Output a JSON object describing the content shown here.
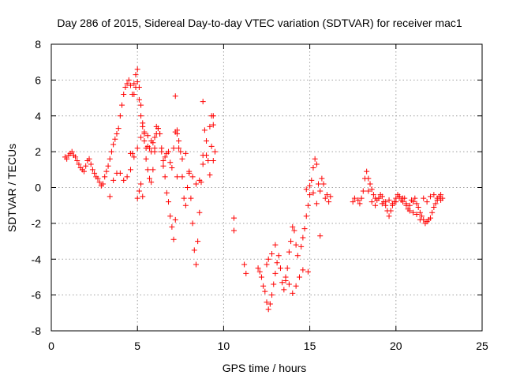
{
  "chart_data": {
    "type": "scatter",
    "title": "Day 286 of 2015, Sidereal Day-to-day VTEC variation (SDTVAR) for receiver mac1",
    "xlabel": "GPS time / hours",
    "ylabel": "SDTVAR / TECUs",
    "xlim": [
      0,
      25
    ],
    "ylim": [
      -8,
      8
    ],
    "xticks": [
      "0",
      "5",
      "10",
      "15",
      "20",
      "25"
    ],
    "yticks": [
      "-8",
      "-6",
      "-4",
      "-2",
      "0",
      "2",
      "4",
      "6",
      "8"
    ],
    "grid": true,
    "marker": "+",
    "color": "#ff0000",
    "series": [
      {
        "name": "SDTVAR",
        "x": [
          0.8,
          0.9,
          1.0,
          1.1,
          1.2,
          1.3,
          1.4,
          1.5,
          1.6,
          1.7,
          1.8,
          1.9,
          2.0,
          2.1,
          2.2,
          2.3,
          2.4,
          2.5,
          2.6,
          2.7,
          2.8,
          2.9,
          3.0,
          3.1,
          3.2,
          3.3,
          3.4,
          3.5,
          3.6,
          3.7,
          3.8,
          3.9,
          4.0,
          4.1,
          4.2,
          4.3,
          4.4,
          4.5,
          4.6,
          4.7,
          4.8,
          4.9,
          5.0,
          5.1,
          5.2,
          5.3,
          5.4,
          5.5,
          5.6,
          5.7,
          5.8,
          5.9,
          6.0,
          6.1,
          6.2,
          6.3,
          6.4,
          6.5,
          6.6,
          6.7,
          6.8,
          6.9,
          7.0,
          7.1,
          7.2,
          7.3,
          7.4,
          7.5,
          7.6,
          7.7,
          7.8,
          7.9,
          8.0,
          8.1,
          8.2,
          8.3,
          8.4,
          8.5,
          8.6,
          8.7,
          8.8,
          8.9,
          9.0,
          9.1,
          9.2,
          9.3,
          9.4,
          9.5,
          10.6,
          10.6,
          11.2,
          11.3,
          12.0,
          12.1,
          12.2,
          12.3,
          12.4,
          12.5,
          12.6,
          12.7,
          12.8,
          12.9,
          13.0,
          13.1,
          13.2,
          13.3,
          13.4,
          13.5,
          13.6,
          13.7,
          13.8,
          13.9,
          14.0,
          14.1,
          14.2,
          14.3,
          14.5,
          14.6,
          14.7,
          14.8,
          14.9,
          15.0,
          15.1,
          15.2,
          15.3,
          15.4,
          15.5,
          15.6,
          15.7,
          15.8,
          15.9,
          16.0,
          16.1,
          16.2,
          17.5,
          17.6,
          17.8,
          17.9,
          18.0,
          18.1,
          18.2,
          18.3,
          18.4,
          18.5,
          18.6,
          18.7,
          18.8,
          18.9,
          19.0,
          19.1,
          19.2,
          19.3,
          19.4,
          19.5,
          19.6,
          19.7,
          19.8,
          19.9,
          20.0,
          20.1,
          20.2,
          20.3,
          20.4,
          20.5,
          20.6,
          20.7,
          20.8,
          20.9,
          21.0,
          21.1,
          21.2,
          21.3,
          21.4,
          21.5,
          21.6,
          21.7,
          21.8,
          21.9,
          22.0,
          22.1,
          22.2,
          22.3,
          22.4,
          22.5,
          22.6,
          22.7,
          3.4,
          3.6,
          3.8,
          4.0,
          4.2,
          4.4,
          4.6,
          4.8,
          5.0,
          5.2,
          5.4,
          5.6,
          5.8,
          6.0,
          4.6,
          4.7,
          4.8,
          4.9,
          5.0,
          5.1,
          5.2,
          5.3,
          5.4,
          5.5,
          5.6,
          5.7,
          5.8,
          5.9,
          6.0,
          6.1,
          6.2,
          6.3,
          6.4,
          6.5,
          6.6,
          6.7,
          6.8,
          6.9,
          7.0,
          7.1,
          7.2,
          7.3,
          7.4,
          7.6,
          7.8,
          8.0,
          8.2,
          8.4,
          8.6,
          8.8,
          9.0,
          9.2,
          9.4,
          5.0,
          5.1,
          5.2,
          5.3,
          7.2,
          7.3,
          8.8,
          9.3,
          9.4,
          13.6,
          13.8,
          14.0,
          14.2,
          14.4,
          14.6,
          14.8,
          15.0,
          15.2,
          15.4,
          15.6,
          12.5,
          12.6,
          12.8,
          13.0,
          14.9,
          18.4,
          18.6,
          18.8,
          19.0,
          19.2,
          19.4,
          19.6,
          19.8,
          20.0,
          20.2,
          20.4,
          20.6,
          20.8,
          21.0,
          21.2,
          21.4,
          21.6,
          21.8,
          22.0,
          22.2,
          22.4,
          22.6
        ],
        "y": [
          1.7,
          1.6,
          1.8,
          1.9,
          2.0,
          1.8,
          1.7,
          1.5,
          1.3,
          1.1,
          1.0,
          0.9,
          1.2,
          1.5,
          1.6,
          1.3,
          1.0,
          0.8,
          0.6,
          0.5,
          0.3,
          0.1,
          0.2,
          0.6,
          0.9,
          1.2,
          1.6,
          2.0,
          2.4,
          2.7,
          3.0,
          3.3,
          4.0,
          4.6,
          5.2,
          5.6,
          5.8,
          6.0,
          5.7,
          5.2,
          5.8,
          6.3,
          6.6,
          5.6,
          4.6,
          3.6,
          2.6,
          1.6,
          1.0,
          0.5,
          0.3,
          1.0,
          2.0,
          3.0,
          3.3,
          3.0,
          2.0,
          1.2,
          0.6,
          -0.3,
          -0.8,
          -1.6,
          -2.2,
          -2.9,
          -1.8,
          0.6,
          2.6,
          2.0,
          0.6,
          -0.6,
          -1.0,
          0.0,
          0.8,
          -0.6,
          -2.0,
          -3.5,
          -4.3,
          -3.0,
          -1.4,
          0.3,
          1.8,
          3.2,
          2.6,
          1.5,
          0.7,
          2.3,
          3.5,
          2.0,
          -1.7,
          -2.4,
          -4.3,
          -4.8,
          -4.5,
          -4.7,
          -5.0,
          -5.5,
          -5.8,
          -6.4,
          -6.8,
          -6.5,
          -6.0,
          -5.4,
          -4.8,
          -4.2,
          -3.8,
          -4.5,
          -5.3,
          -5.7,
          -5.2,
          -4.5,
          -3.6,
          -3.0,
          -2.2,
          -2.4,
          -3.2,
          -3.8,
          -3.3,
          -2.8,
          -2.3,
          -1.6,
          -1.0,
          -0.4,
          0.4,
          1.1,
          1.6,
          1.3,
          0.2,
          -0.2,
          0.5,
          0.2,
          -0.6,
          -0.4,
          -0.8,
          -0.5,
          -0.8,
          -0.6,
          -0.7,
          -0.9,
          -0.6,
          -0.2,
          0.5,
          0.9,
          0.5,
          0.2,
          -0.1,
          -0.4,
          -0.6,
          -0.7,
          -0.6,
          -0.4,
          -0.5,
          -0.8,
          -1.0,
          -1.3,
          -1.6,
          -1.3,
          -1.0,
          -0.8,
          -0.6,
          -0.4,
          -0.5,
          -0.7,
          -0.8,
          -0.6,
          -0.9,
          -1.2,
          -1.0,
          -0.7,
          -0.8,
          -0.6,
          -0.9,
          -1.1,
          -1.4,
          -1.6,
          -1.8,
          -2.0,
          -1.9,
          -1.8,
          -1.7,
          -1.4,
          -1.1,
          -0.9,
          -0.7,
          -0.5,
          -0.4,
          -0.6,
          -0.5,
          0.4,
          0.8,
          0.8,
          0.4,
          0.6,
          1.0,
          1.7,
          2.2,
          2.8,
          3.0,
          2.9,
          2.6,
          2.2,
          1.9,
          1.9,
          5.2,
          5.6,
          5.9,
          4.9,
          4.0,
          3.4,
          3.1,
          2.2,
          2.3,
          2.2,
          2.0,
          2.5,
          2.8,
          3.4,
          3.3,
          3.0,
          2.2,
          1.5,
          1.7,
          1.9,
          2.0,
          1.4,
          1.1,
          2.2,
          3.1,
          3.0,
          2.2,
          1.6,
          1.9,
          0.9,
          0.6,
          0.2,
          0.4,
          1.3,
          1.8,
          3.4,
          4.0,
          -0.6,
          -0.2,
          0.2,
          -0.5,
          5.1,
          3.2,
          4.8,
          4.0,
          1.5,
          -5.0,
          -5.4,
          -5.9,
          -5.5,
          -5.0,
          -4.6,
          -0.1,
          0.1,
          -0.3,
          -0.9,
          -2.7,
          -4.3,
          -4.0,
          -3.7,
          -3.2,
          -4.7,
          -0.2,
          -0.8,
          -1.0,
          -0.6,
          -0.9,
          -0.8,
          -0.7,
          -0.9,
          -0.8,
          -0.5,
          -0.6,
          -1.0,
          -1.3,
          -1.4,
          -1.5,
          -1.8,
          -0.6,
          -0.8,
          -0.5,
          -0.4,
          -0.6,
          -0.7
        ]
      }
    ]
  }
}
